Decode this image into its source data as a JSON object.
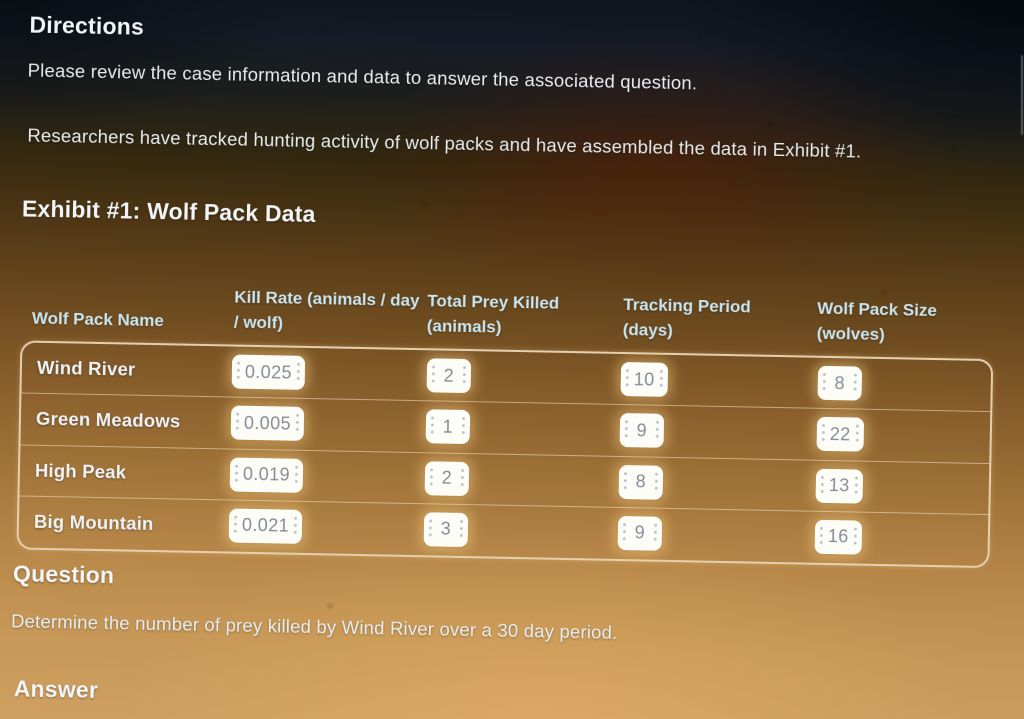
{
  "directions": {
    "title": "Directions",
    "paragraph1": "Please review the case information and data to answer the associated question.",
    "paragraph2": "Researchers have tracked hunting activity of wolf packs and have assembled the data in Exhibit #1."
  },
  "exhibit": {
    "title": "Exhibit #1: Wolf Pack Data",
    "table": {
      "columns": [
        "Wolf Pack Name",
        "Kill Rate (animals / day / wolf)",
        "Total Prey Killed (animals)",
        "Tracking Period (days)",
        "Wolf Pack Size (wolves)"
      ],
      "rows": [
        {
          "name": "Wind River",
          "kill_rate": "0.025",
          "total_prey": "2",
          "tracking_period": "10",
          "pack_size": "8"
        },
        {
          "name": "Green Meadows",
          "kill_rate": "0.005",
          "total_prey": "1",
          "tracking_period": "9",
          "pack_size": "22"
        },
        {
          "name": "High Peak",
          "kill_rate": "0.019",
          "total_prey": "2",
          "tracking_period": "8",
          "pack_size": "13"
        },
        {
          "name": "Big Mountain",
          "kill_rate": "0.021",
          "total_prey": "3",
          "tracking_period": "9",
          "pack_size": "16"
        }
      ]
    }
  },
  "question": {
    "title": "Question",
    "text": "Determine the number of prey killed by Wind River over a 30 day period."
  },
  "answer": {
    "title": "Answer"
  },
  "colors": {
    "header_text": "#c9e5ef",
    "chip_bg": "#fdfdf8",
    "chip_text": "#858c96",
    "table_border": "#e4cfae"
  }
}
